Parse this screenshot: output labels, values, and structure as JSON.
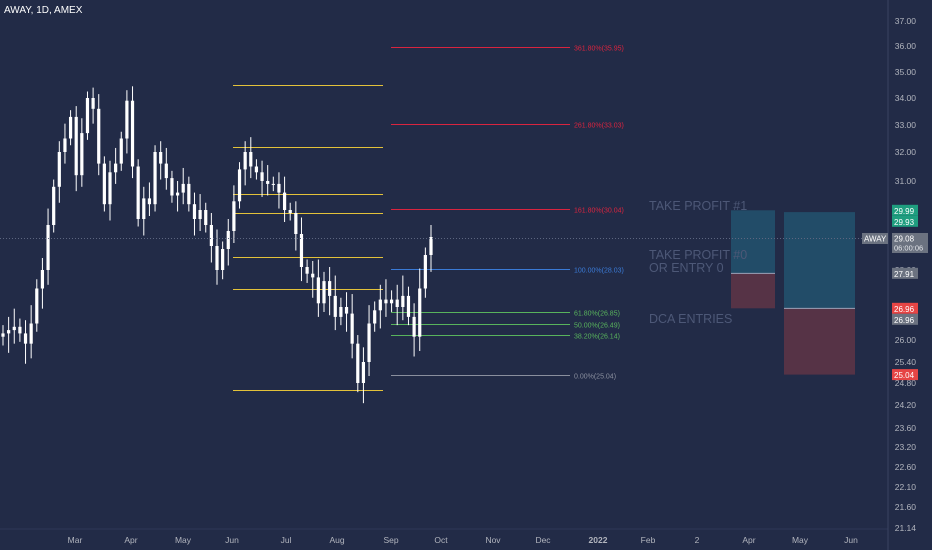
{
  "header": {
    "title": "AWAY, 1D, AMEX"
  },
  "colors": {
    "background": "#222b47",
    "candle": "#ffffff",
    "level_line": "#e3c23a",
    "fib_red": "#d9243f",
    "fib_blue": "#3a7ad6",
    "fib_green": "#58b35c",
    "fib_gray": "#8a8f9e",
    "tp_zone": "#22506b",
    "sl_zone": "#5a3447",
    "badge_green": "#1f9e7f",
    "badge_red": "#e64545",
    "badge_gray": "#6b7280"
  },
  "chart_data": {
    "type": "candlestick",
    "symbol": "AWAY",
    "interval": "1D",
    "exchange": "AMEX",
    "y_axis": {
      "ticks": [
        "37.00",
        "36.00",
        "35.00",
        "34.00",
        "33.00",
        "32.00",
        "31.00",
        "30.00",
        "29.00",
        "28.00",
        "27.00",
        "26.00",
        "25.40",
        "24.80",
        "24.20",
        "23.60",
        "23.20",
        "22.60",
        "22.10",
        "21.60",
        "21.14"
      ]
    },
    "x_axis": {
      "ticks": [
        "Mar",
        "Apr",
        "May",
        "Jun",
        "Jul",
        "Aug",
        "Sep",
        "Oct",
        "Nov",
        "Dec",
        "2022",
        "Feb",
        "2",
        "Apr",
        "May",
        "Jun"
      ]
    },
    "series": [
      {
        "values": [
          26.2,
          26.3,
          26.4,
          26.2,
          25.9,
          26.5,
          27.5,
          28.0,
          29.5,
          30.8,
          32.0,
          32.5,
          33.3,
          31.2,
          32.7,
          34.0,
          33.6,
          31.6,
          30.2,
          31.3,
          31.6,
          32.5,
          33.9,
          31.5,
          29.7,
          30.4,
          30.2,
          32.0,
          31.6,
          31.1,
          30.5,
          30.6,
          30.9,
          30.2,
          29.7,
          30.0,
          29.5,
          28.8,
          28.0,
          28.7,
          29.3,
          30.3,
          31.4,
          32.0,
          31.5,
          31.3,
          31.0,
          30.9,
          30.9,
          30.6,
          30.0,
          29.9,
          29.2,
          28.1,
          27.9,
          27.8,
          27.1,
          27.7,
          27.3,
          26.7,
          27.0,
          26.8,
          25.9,
          24.8,
          25.4,
          26.5,
          26.9,
          27.2,
          27.1,
          27.2,
          27.0,
          27.3,
          26.7,
          26.1,
          27.5,
          28.5,
          29.1
        ]
      }
    ],
    "levels": [
      34.5,
      32.2,
      30.55,
      29.9,
      28.45,
      27.5,
      24.6
    ],
    "fibonacci": [
      {
        "label": "0.00%(25.04)",
        "value": 25.04
      },
      {
        "label": "38.20%(26.14)",
        "value": 26.14
      },
      {
        "label": "50.00%(26.49)",
        "value": 26.49
      },
      {
        "label": "61.80%(26.85)",
        "value": 26.85
      },
      {
        "label": "100.00%(28.03)",
        "value": 28.03
      },
      {
        "label": "161.80%(30.04)",
        "value": 30.04
      },
      {
        "label": "261.80%(33.03)",
        "value": 33.03
      },
      {
        "label": "361.80%(35.95)",
        "value": 35.95
      }
    ],
    "annotations": {
      "take_profit_1": "TAKE PROFIT #1",
      "take_profit_0_line1": "TAKE PROFIT #0",
      "take_profit_0_line2": "OR ENTRY 0",
      "dca_entries": "DCA ENTRIES"
    },
    "positions": [
      {
        "entry": 27.91,
        "target": 29.99,
        "stop": 26.96
      },
      {
        "entry": 26.96,
        "target": 29.93,
        "stop": 25.04
      }
    ],
    "price_badges": {
      "symbol": "AWAY",
      "last_price": "29.08",
      "countdown": "06:00:06",
      "tp1": "29.99",
      "tp2": "29.93",
      "entry0": "27.91",
      "dca_stop": "26.96",
      "dca_entry": "26.96",
      "low": "25.04"
    }
  }
}
